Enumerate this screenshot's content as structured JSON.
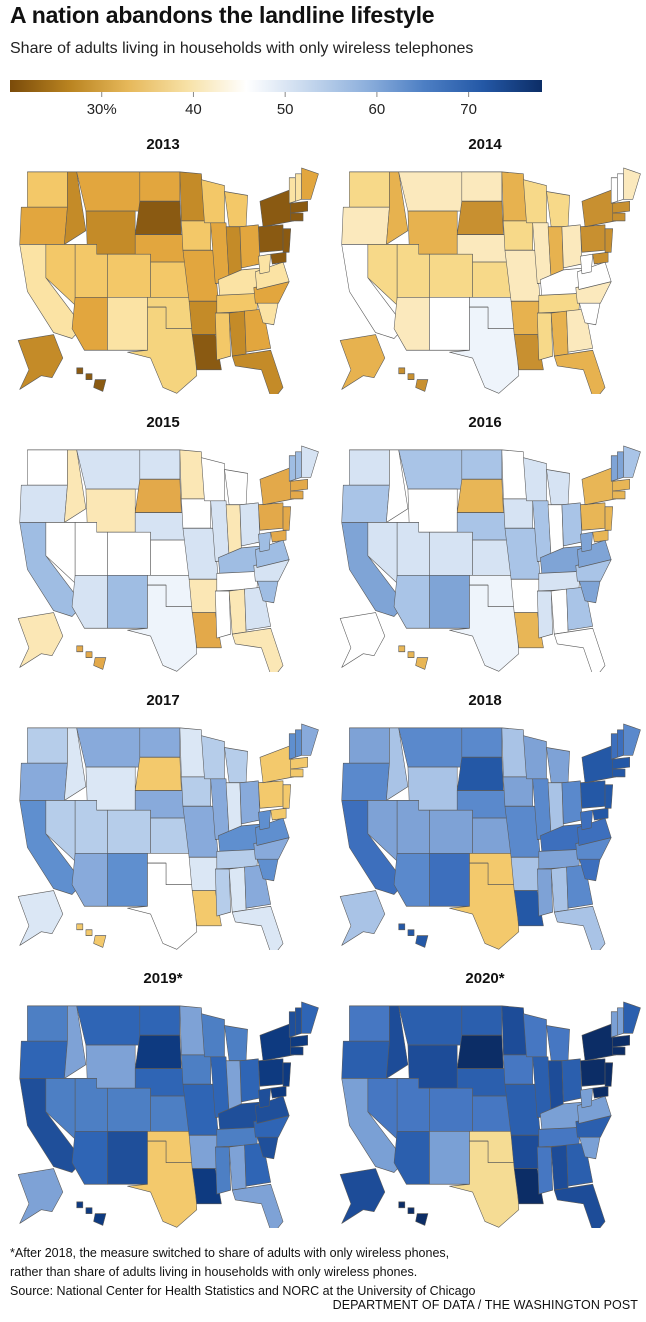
{
  "header": {
    "title": "A nation abandons the landline lifestyle",
    "subtitle": "Share of adults living in households with only wireless telephones"
  },
  "legend": {
    "ticks": [
      {
        "value": 30,
        "label": "30%"
      },
      {
        "value": 40,
        "label": "40"
      },
      {
        "value": 50,
        "label": "50"
      },
      {
        "value": 60,
        "label": "60"
      },
      {
        "value": 70,
        "label": "70"
      }
    ],
    "range": [
      20,
      78
    ],
    "colors": [
      "#7a4b0a",
      "#b98320",
      "#e6b85a",
      "#f7e1a6",
      "#ffffff",
      "#c8d9ee",
      "#8fb1dd",
      "#4d7fc4",
      "#2458a6",
      "#0c2d66"
    ]
  },
  "maps": [
    {
      "year_label": "2013",
      "palette": [
        "#f3c868",
        "#e2a63e",
        "#c48b28",
        "#fbe3a4",
        "#8a5a12",
        "#f5d47e"
      ]
    },
    {
      "year_label": "2014",
      "palette": [
        "#f7d989",
        "#fbe9bd",
        "#e7b24f",
        "#ffffff",
        "#c89030",
        "#eef4fb"
      ]
    },
    {
      "year_label": "2015",
      "palette": [
        "#ffffff",
        "#d6e3f3",
        "#fbe7b5",
        "#9fbde3",
        "#e3a94a",
        "#eef4fb"
      ]
    },
    {
      "year_label": "2016",
      "palette": [
        "#d6e3f3",
        "#a9c4e7",
        "#ffffff",
        "#7fa4d6",
        "#e8b656",
        "#eef4fb"
      ]
    },
    {
      "year_label": "2017",
      "palette": [
        "#b6cdea",
        "#88aadb",
        "#dbe7f5",
        "#5f8fcf",
        "#f3c96c",
        "#ffffff"
      ]
    },
    {
      "year_label": "2018",
      "palette": [
        "#7ea2d6",
        "#5a89cc",
        "#a9c3e6",
        "#3d6fbd",
        "#2458a6",
        "#f3c96c"
      ]
    },
    {
      "year_label": "2019*",
      "palette": [
        "#4d7fc4",
        "#2f65b5",
        "#7ea2d6",
        "#1f4f9a",
        "#0e3a80",
        "#f3c96c"
      ]
    },
    {
      "year_label": "2020*",
      "palette": [
        "#4677c2",
        "#2b5fae",
        "#1d4c98",
        "#7aa0d5",
        "#0c2d66",
        "#f5dc94"
      ]
    }
  ],
  "footnote": {
    "line1": "*After 2018, the measure switched to share of adults with only wireless phones,",
    "line2": "rather than share of adults living in households with only wireless phones.",
    "source": "Source: National Center for Health Statistics and NORC at the University of Chicago"
  },
  "credit": "DEPARTMENT OF DATA / THE WASHINGTON POST"
}
